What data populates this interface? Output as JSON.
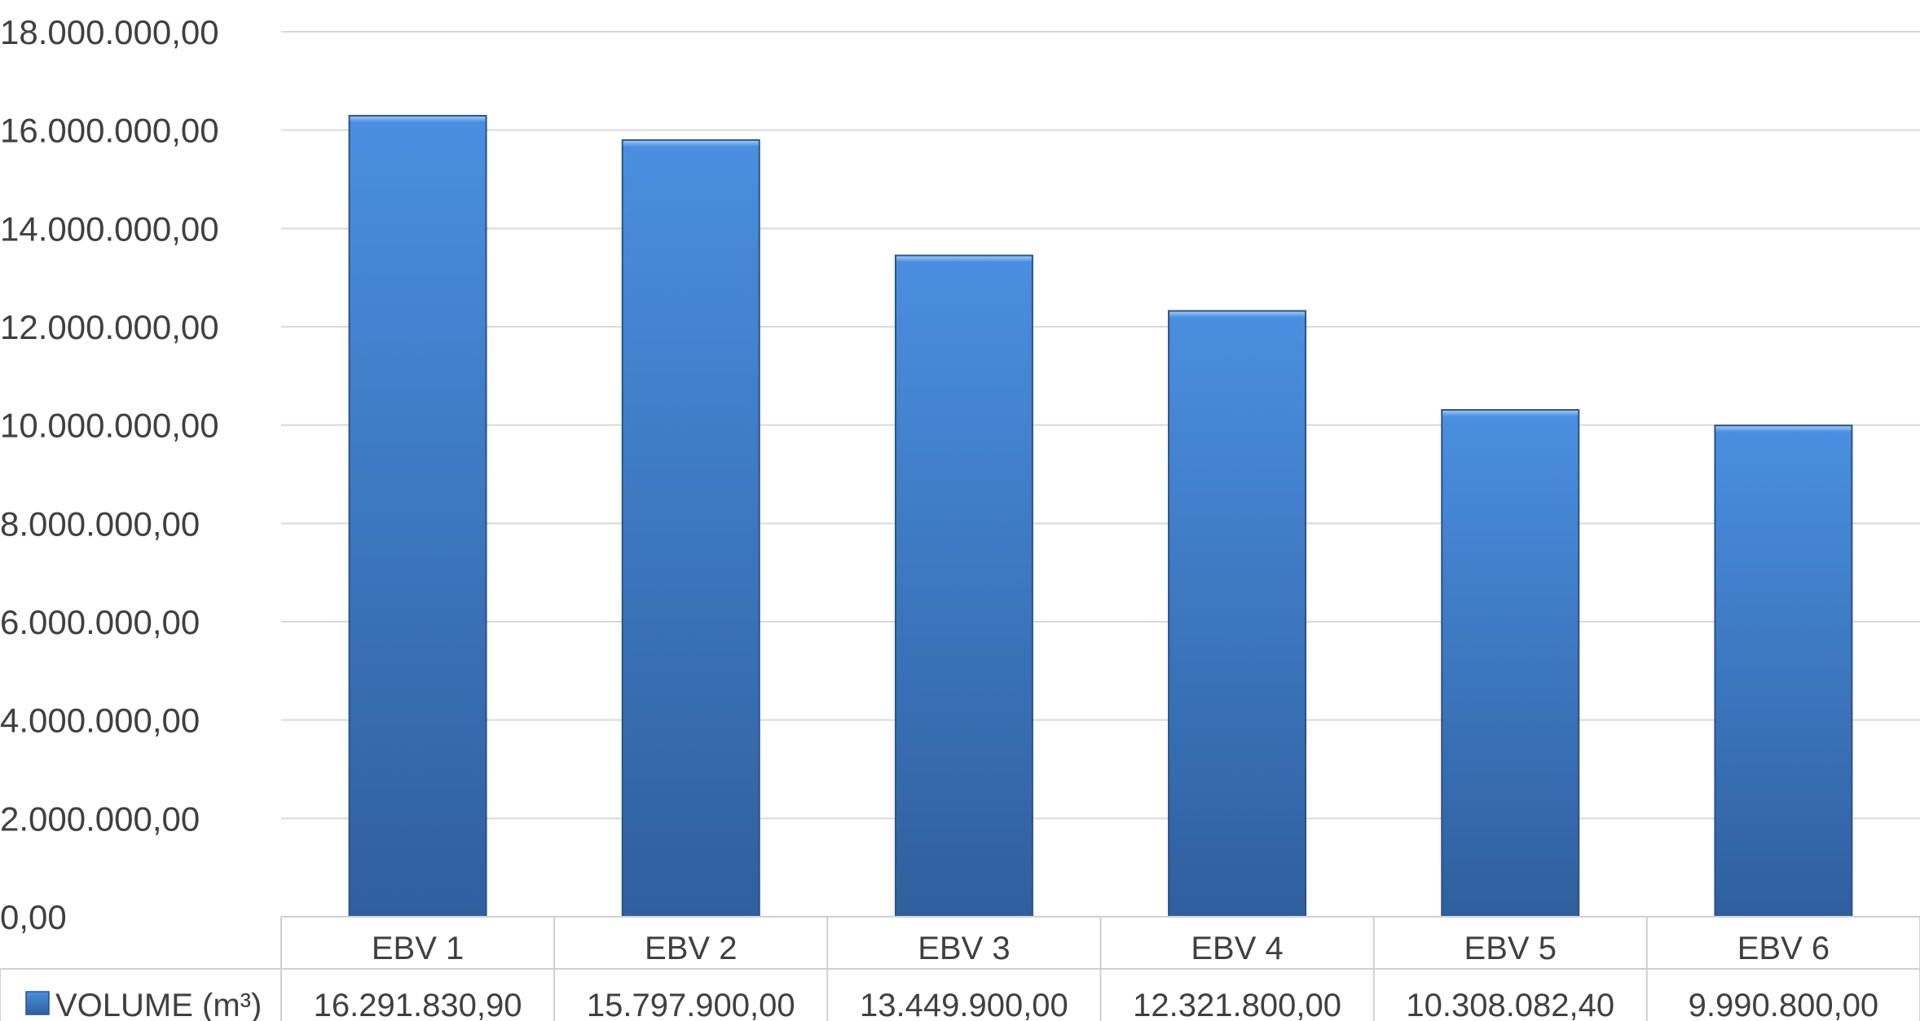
{
  "chart_data": {
    "type": "bar",
    "categories": [
      "EBV 1",
      "EBV 2",
      "EBV 3",
      "EBV 4",
      "EBV 5",
      "EBV 6"
    ],
    "series": [
      {
        "name": "VOLUME (m³)",
        "values": [
          16291830.9,
          15797900.0,
          13449900.0,
          12321800.0,
          10308082.4,
          9990800.0
        ],
        "value_labels": [
          "16.291.830,90",
          "15.797.900,00",
          "13.449.900,00",
          "12.321.800,00",
          "10.308.082,40",
          "9.990.800,00"
        ]
      }
    ],
    "ylim": [
      0,
      18000000
    ],
    "y_ticks": [
      0,
      2000000,
      4000000,
      6000000,
      8000000,
      10000000,
      12000000,
      14000000,
      16000000,
      18000000
    ],
    "y_tick_labels": [
      "0,00",
      "2.000.000,00",
      "4.000.000,00",
      "6.000.000,00",
      "8.000.000,00",
      "10.000.000,00",
      "12.000.000,00",
      "14.000.000,00",
      "16.000.000,00",
      "18.000.000,00"
    ],
    "title": "",
    "xlabel": "",
    "ylabel": "",
    "grid": true,
    "legend": "data-table",
    "colors": {
      "bar_top": "#4a8fe0",
      "bar_bottom": "#2f5f9e",
      "bar_edge": "#2a5288",
      "grid": "#d9d9d9",
      "table_border": "#d0d0d0",
      "text": "#404040"
    }
  }
}
